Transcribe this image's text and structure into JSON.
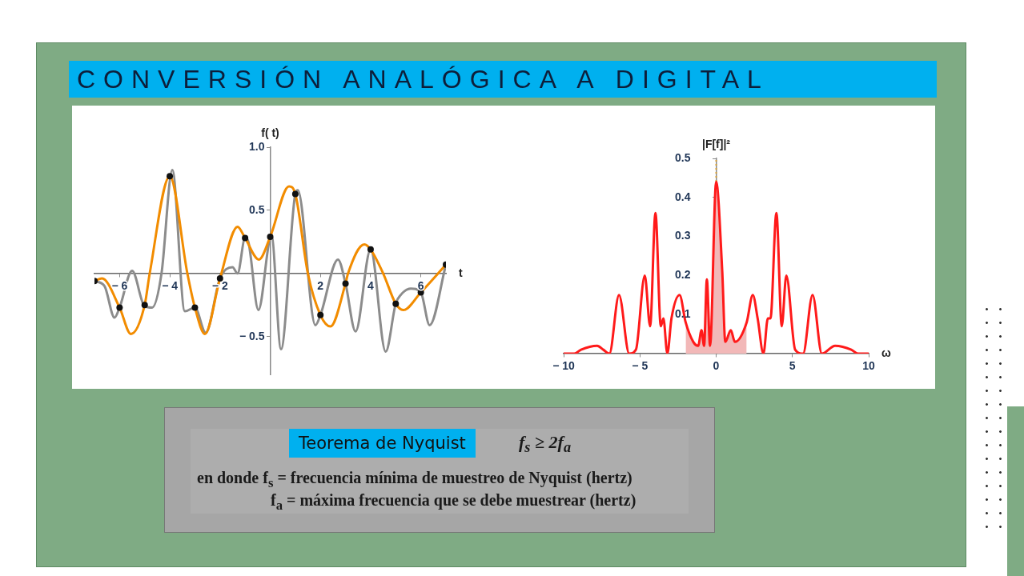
{
  "chart_data": [
    {
      "type": "line",
      "title": "CONVERSIÓN ANALÓGICA A DIGITAL",
      "xlabel": "t",
      "ylabel": "f( t)",
      "xlim": [
        -7,
        7
      ],
      "ylim": [
        -0.8,
        1.0
      ],
      "xticks": [
        {
          "value": -6,
          "label": "− 6"
        },
        {
          "value": -4,
          "label": "− 4"
        },
        {
          "value": -2,
          "label": "− 2"
        },
        2,
        4,
        6
      ],
      "yticks": [
        {
          "value": -0.5,
          "label": "− 0.5"
        },
        0.5,
        {
          "value": 1,
          "label": "1.0"
        }
      ],
      "grid": false,
      "legend": false,
      "series": [
        {
          "type": "line",
          "color": "#8c8c8c",
          "x": [
            -7,
            -6.6,
            -6.2,
            -6,
            -5.5,
            -5,
            -4.7,
            -4.33,
            -3.9,
            -3.4,
            -3,
            -2.57,
            -2,
            -1.5,
            -1.3,
            -1,
            -0.87,
            -0.47,
            0,
            0.05,
            0.43,
            1,
            1.1,
            1.8,
            2,
            2.7,
            3,
            3.4,
            4,
            4.6,
            5,
            5.2,
            5.6,
            6,
            6.35,
            7
          ],
          "values": [
            -0.06,
            -0.1,
            -0.35,
            -0.27,
            0.02,
            -0.26,
            -0.27,
            0,
            0.82,
            -0.3,
            -0.27,
            -0.47,
            -0.04,
            0.05,
            0,
            0.28,
            0.25,
            -0.29,
            0.29,
            0.3,
            -0.6,
            0.63,
            0.66,
            -0.41,
            -0.33,
            0.11,
            -0.08,
            -0.46,
            0.19,
            -0.62,
            -0.24,
            -0.17,
            -0.12,
            -0.15,
            -0.41,
            0.07
          ]
        },
        {
          "type": "line",
          "color": "#f28c00",
          "x": [
            -7,
            -6.7,
            -6,
            -5.55,
            -5,
            -4.8,
            -4,
            -3.3,
            -3,
            -2.6,
            -2,
            -1.3,
            -1,
            -0.45,
            0,
            0.75,
            1,
            1.5,
            2,
            2.4,
            3,
            3.1,
            3.75,
            4,
            4.5,
            5,
            5.3,
            6,
            7
          ],
          "values": [
            -0.06,
            -0.04,
            -0.27,
            -0.48,
            -0.25,
            0,
            0.77,
            0,
            -0.27,
            -0.48,
            -0.04,
            0.37,
            0.28,
            0.11,
            0.29,
            0.69,
            0.63,
            0,
            -0.33,
            -0.42,
            -0.08,
            0,
            0.23,
            0.19,
            0,
            -0.24,
            -0.29,
            -0.15,
            0.07
          ]
        },
        {
          "type": "scatter",
          "marker": "circle",
          "color": "#111111",
          "x": [
            -7,
            -6,
            -5,
            -4,
            -3,
            -2,
            -1,
            0,
            1,
            2,
            3,
            4,
            5,
            6,
            7
          ],
          "values": [
            -0.06,
            -0.27,
            -0.25,
            0.77,
            -0.27,
            -0.04,
            0.28,
            0.29,
            0.63,
            -0.33,
            -0.08,
            0.19,
            -0.24,
            -0.15,
            0.07
          ]
        }
      ]
    },
    {
      "type": "line",
      "xlabel": "ω",
      "ylabel": "|F[f]|²",
      "xlim": [
        -10,
        10
      ],
      "ylim": [
        0,
        0.5
      ],
      "xticks": [
        {
          "value": -10,
          "label": "− 10"
        },
        {
          "value": -5,
          "label": "− 5"
        },
        0,
        5,
        10
      ],
      "yticks": [
        0.1,
        0.2,
        0.3,
        0.4,
        0.5
      ],
      "grid": false,
      "legend": false,
      "ref_lines": [
        {
          "axis": "x",
          "value": 0,
          "color": "#d9a23a",
          "line_style": "dotted"
        }
      ],
      "series": [
        {
          "type": "area",
          "color": "#f2b8b8",
          "x": [
            -2,
            -1.5,
            -1.18,
            -0.96,
            -0.79,
            -0.61,
            -0.4,
            0,
            0.4,
            0.6,
            0.96,
            1.23,
            2
          ],
          "values": [
            0.08,
            0.03,
            0.02,
            0.06,
            0.02,
            0.19,
            0.02,
            0.44,
            0.21,
            0.03,
            0.06,
            0.03,
            0.08
          ]
        },
        {
          "type": "line",
          "color": "#ff1a1a",
          "x": [
            -10,
            -9.3,
            -8.86,
            -7.8,
            -7.4,
            -7,
            -6.37,
            -5.7,
            -5.26,
            -4.68,
            -4.33,
            -3.98,
            -3.63,
            -3.46,
            -3.2,
            -2.93,
            -2.4,
            -2,
            -1.5,
            -1.18,
            -0.96,
            -0.79,
            -0.61,
            -0.4,
            0,
            0.4,
            0.6,
            0.96,
            1.23,
            2,
            2.4,
            2.72,
            3.1,
            3.39,
            3.56,
            3.95,
            4.3,
            4.6,
            5.18,
            5.7,
            6.32,
            6.93,
            7.8,
            8.86,
            9.3,
            10
          ],
          "values": [
            0,
            0,
            0.01,
            0.02,
            0.01,
            0,
            0.15,
            0,
            0.01,
            0.2,
            0.07,
            0.36,
            0.07,
            0.09,
            0,
            0.09,
            0.15,
            0.08,
            0.03,
            0.02,
            0.06,
            0.02,
            0.19,
            0.02,
            0.44,
            0.21,
            0.03,
            0.06,
            0.03,
            0.08,
            0.15,
            0.09,
            0,
            0.09,
            0.09,
            0.36,
            0.07,
            0.2,
            0.01,
            0,
            0.15,
            0,
            0.02,
            0.01,
            0,
            0
          ]
        }
      ]
    },
    {
      "type": "other",
      "title": "Teorema de Nyquist",
      "annotations": [
        "f$_{s}$ ≥ 2f$_{a}$",
        "en donde f$_{s}$ = frecuencia mínima de muestreo de Nyquist (hertz)",
        "f$_{a}$ = máxima frecuencia que se debe muestrear (hertz)"
      ]
    }
  ]
}
